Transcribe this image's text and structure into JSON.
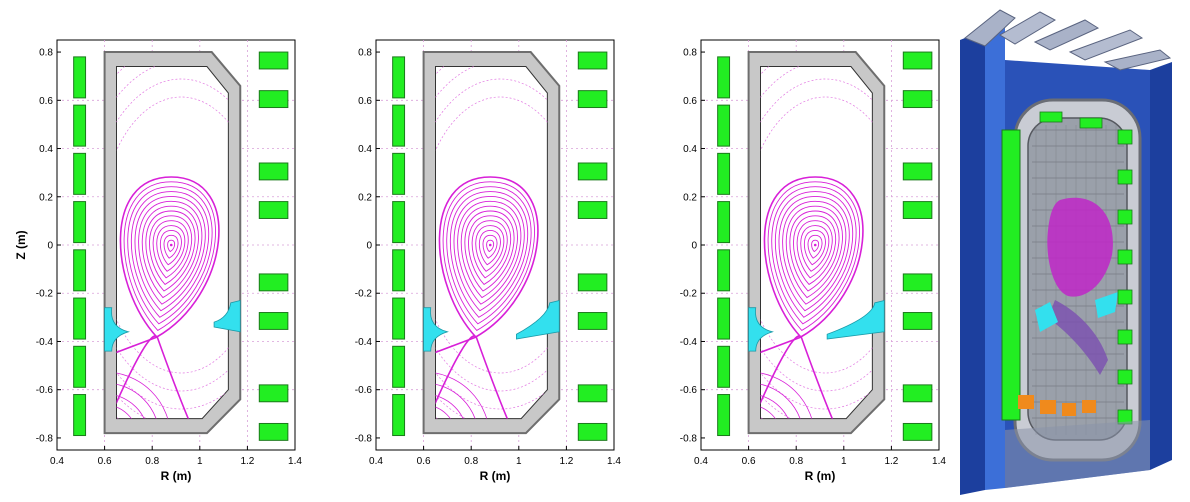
{
  "figure": {
    "colors": {
      "coil": "#22ee22",
      "coil_edge": "#1b7a1b",
      "vessel": "#c8c8c8",
      "vessel_edge": "#6e6e6e",
      "flux": "#d820d8",
      "flux_faint": "#e27ae2",
      "divertor": "#33e0ee",
      "grid": "#d9a0d9",
      "model_frame": "#1c3f9e",
      "model_frame_light": "#3c6fd8",
      "model_interior": "#bfc3cc",
      "model_orange": "#f08a1c"
    },
    "panels": [
      {
        "name": "panel-1",
        "xlabel": "R (m)",
        "ylabel": "Z (m)",
        "x_ticks": [
          "0.4",
          "0.6",
          "0.8",
          "1",
          "1.2",
          "1.4"
        ],
        "y_ticks": [
          "0.8",
          "0.6",
          "0.4",
          "0.2",
          "0",
          "-0.2",
          "-0.4",
          "-0.6",
          "-0.8"
        ],
        "x_range": [
          0.4,
          1.4
        ],
        "y_range": [
          -0.85,
          0.85
        ],
        "outer_divertor_length": "short"
      },
      {
        "name": "panel-2",
        "xlabel": "R (m)",
        "ylabel": "",
        "x_ticks": [
          "0.4",
          "0.6",
          "0.8",
          "1",
          "1.2",
          "1.4"
        ],
        "y_ticks": [
          "0.8",
          "0.6",
          "0.4",
          "0.2",
          "0",
          "-0.2",
          "-0.4",
          "-0.6",
          "-0.8"
        ],
        "x_range": [
          0.4,
          1.4
        ],
        "y_range": [
          -0.85,
          0.85
        ],
        "outer_divertor_length": "medium"
      },
      {
        "name": "panel-3",
        "xlabel": "R (m)",
        "ylabel": "",
        "x_ticks": [
          "0.4",
          "0.6",
          "0.8",
          "1",
          "1.2",
          "1.4"
        ],
        "y_ticks": [
          "0.8",
          "0.6",
          "0.4",
          "0.2",
          "0",
          "-0.2",
          "-0.4",
          "-0.6",
          "-0.8"
        ],
        "x_range": [
          0.4,
          1.4
        ],
        "y_range": [
          -0.85,
          0.85
        ],
        "outer_divertor_length": "long"
      }
    ],
    "model": {
      "icon": "tokamak-cutaway-3d-model"
    }
  }
}
